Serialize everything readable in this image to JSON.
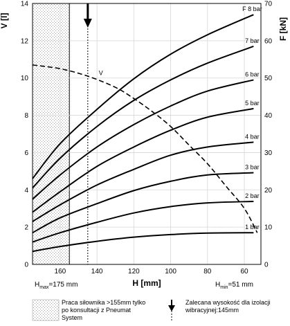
{
  "chart_data": {
    "type": "line",
    "x_label": "H [mm]",
    "y_left_label": "V [l]",
    "y_right_label": "F [kN]",
    "x_ticks": [
      160,
      140,
      120,
      100,
      80,
      60
    ],
    "x_range": [
      175,
      51
    ],
    "x_reversed": true,
    "y_left_ticks": [
      0,
      2,
      4,
      6,
      8,
      10,
      12,
      14
    ],
    "y_left_range": [
      0,
      14
    ],
    "y_right_ticks": [
      0,
      10,
      20,
      30,
      40,
      50,
      60,
      70
    ],
    "y_right_range": [
      0,
      70
    ],
    "grid": true,
    "h_max_label": "H",
    "h_max_sub": "max",
    "h_max_value": "=175 mm",
    "h_min_label": "H",
    "h_min_sub": "min",
    "h_min_value": "=51 mm",
    "force_series": [
      {
        "name": "F 8 bar",
        "label": "F 8 bar",
        "points": [
          [
            175,
            23
          ],
          [
            160,
            32.4
          ],
          [
            140,
            41.6
          ],
          [
            120,
            49.8
          ],
          [
            100,
            56.4
          ],
          [
            80,
            61.6
          ],
          [
            55,
            67
          ]
        ]
      },
      {
        "name": "7 bar",
        "label": "7 bar",
        "points": [
          [
            175,
            20.5
          ],
          [
            160,
            28.5
          ],
          [
            140,
            37
          ],
          [
            120,
            44
          ],
          [
            100,
            49.5
          ],
          [
            80,
            54
          ],
          [
            55,
            58.5
          ]
        ]
      },
      {
        "name": "6 bar",
        "label": "6 bar",
        "points": [
          [
            175,
            17.5
          ],
          [
            160,
            24
          ],
          [
            140,
            31.5
          ],
          [
            120,
            37.5
          ],
          [
            100,
            42.5
          ],
          [
            80,
            46.5
          ],
          [
            55,
            49.5
          ]
        ]
      },
      {
        "name": "5 bar",
        "label": "5 bar",
        "points": [
          [
            175,
            14
          ],
          [
            160,
            19.5
          ],
          [
            140,
            26.3
          ],
          [
            120,
            31.5
          ],
          [
            100,
            36
          ],
          [
            80,
            39.5
          ],
          [
            55,
            41.8
          ]
        ]
      },
      {
        "name": "4 bar",
        "label": "4 bar",
        "points": [
          [
            175,
            11.5
          ],
          [
            160,
            16
          ],
          [
            140,
            21.3
          ],
          [
            120,
            25.5
          ],
          [
            100,
            29.3
          ],
          [
            80,
            31.5
          ],
          [
            55,
            32.8
          ]
        ]
      },
      {
        "name": "3 bar",
        "label": "3 bar",
        "points": [
          [
            175,
            8.5
          ],
          [
            160,
            12.5
          ],
          [
            140,
            16.3
          ],
          [
            120,
            19.8
          ],
          [
            100,
            22.3
          ],
          [
            80,
            24
          ],
          [
            55,
            24.6
          ]
        ]
      },
      {
        "name": "2 bar",
        "label": "2 bar",
        "points": [
          [
            175,
            6
          ],
          [
            160,
            8.5
          ],
          [
            140,
            11.3
          ],
          [
            120,
            13.8
          ],
          [
            100,
            15.5
          ],
          [
            80,
            16.5
          ],
          [
            55,
            16.9
          ]
        ]
      },
      {
        "name": "1 bar",
        "label": "1 bar",
        "points": [
          [
            175,
            3.5
          ],
          [
            160,
            4.8
          ],
          [
            140,
            6.2
          ],
          [
            120,
            7.3
          ],
          [
            100,
            8
          ],
          [
            80,
            8.4
          ],
          [
            55,
            8.5
          ]
        ]
      }
    ],
    "volume_series": {
      "name": "V",
      "label": "V",
      "points": [
        [
          175,
          10.7
        ],
        [
          160,
          10.5
        ],
        [
          145,
          10.1
        ],
        [
          130,
          9.5
        ],
        [
          120,
          8.9
        ],
        [
          110,
          8.2
        ],
        [
          100,
          7.4
        ],
        [
          90,
          6.4
        ],
        [
          80,
          5.4
        ],
        [
          70,
          4.2
        ],
        [
          60,
          3
        ],
        [
          53,
          1.7
        ]
      ]
    },
    "hatched_region": [
      175,
      155
    ],
    "marker_h": 145
  },
  "legend": {
    "hatch_text": "Praca siłownika >155mm tylko po konsultacji z Pneumat System",
    "arrow_text": "Zalecana wysokość dla izolacji wibracyjnej:145mm"
  }
}
